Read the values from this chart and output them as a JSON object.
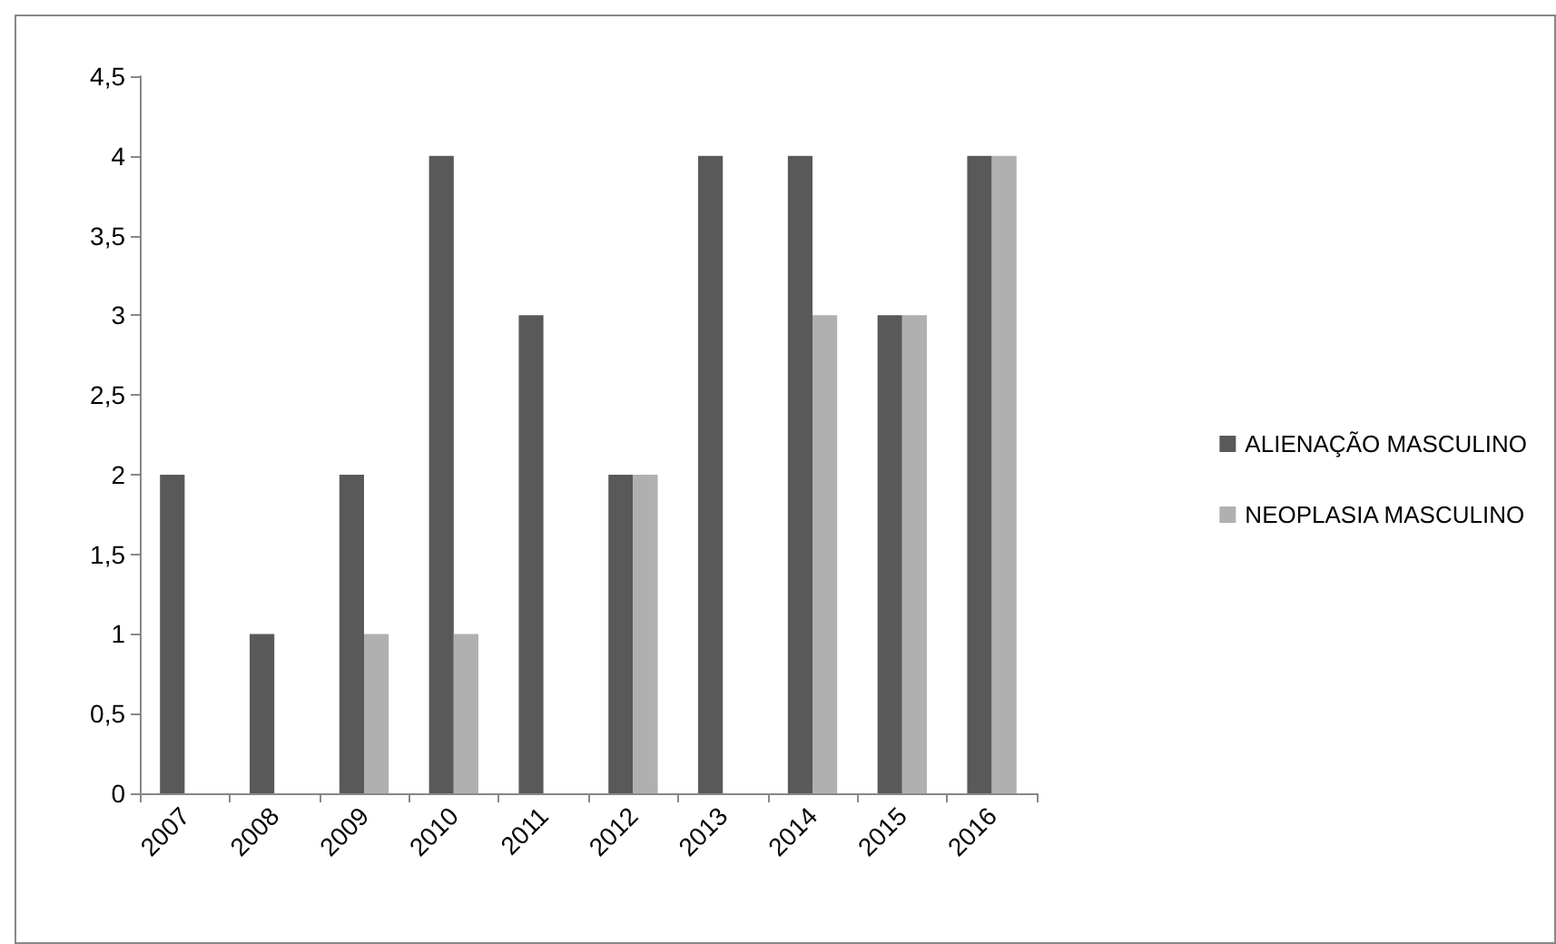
{
  "chart_data": {
    "type": "bar",
    "categories": [
      "2007",
      "2008",
      "2009",
      "2010",
      "2011",
      "2012",
      "2013",
      "2014",
      "2015",
      "2016"
    ],
    "series": [
      {
        "name": "ALIENAÇÃO MASCULINO",
        "color": "#595959",
        "values": [
          2,
          1,
          2,
          4,
          3,
          2,
          4,
          4,
          3,
          4
        ]
      },
      {
        "name": "NEOPLASIA MASCULINO",
        "color": "#b0b0b0",
        "values": [
          0,
          0,
          1,
          1,
          0,
          2,
          0,
          3,
          3,
          4
        ]
      }
    ],
    "ylim": [
      0,
      4.5
    ],
    "yticks": [
      0,
      {
        "value": 0.5,
        "label": "0,5"
      },
      1,
      {
        "value": 1.5,
        "label": "1,5"
      },
      2,
      {
        "value": 2.5,
        "label": "2,5"
      },
      3,
      {
        "value": 3.5,
        "label": "3,5"
      },
      4,
      {
        "value": 4.5,
        "label": "4,5"
      }
    ],
    "grid": false,
    "legend": "right"
  }
}
